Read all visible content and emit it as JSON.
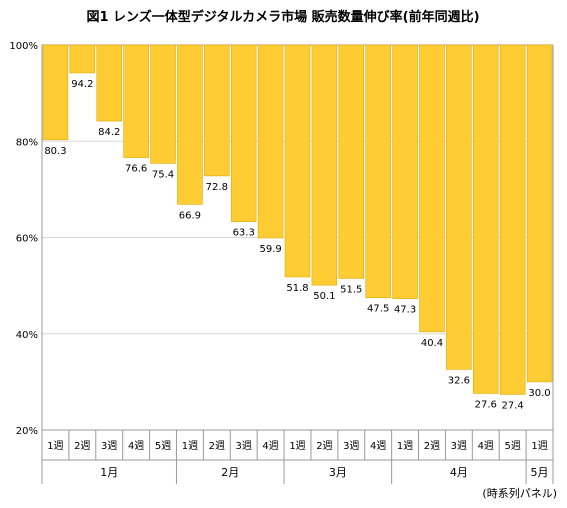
{
  "chart_data": {
    "type": "bar",
    "title": "図1 レンズ一体型デジタルカメラ市場 販売数量伸び率(前年同週比)",
    "ylim": [
      20,
      100
    ],
    "y_ticks": [
      "20%",
      "40%",
      "60%",
      "80%",
      "100%"
    ],
    "categories": [
      "1週",
      "2週",
      "3週",
      "4週",
      "5週",
      "1週",
      "2週",
      "3週",
      "4週",
      "1週",
      "2週",
      "3週",
      "4週",
      "1週",
      "2週",
      "3週",
      "4週",
      "5週",
      "1週"
    ],
    "month_groups": [
      {
        "label": "1月",
        "count": 5
      },
      {
        "label": "2月",
        "count": 4
      },
      {
        "label": "3月",
        "count": 4
      },
      {
        "label": "4月",
        "count": 5
      },
      {
        "label": "5月",
        "count": 1
      }
    ],
    "values": [
      80.3,
      94.2,
      84.2,
      76.6,
      75.4,
      66.9,
      72.8,
      63.3,
      59.9,
      51.8,
      50.1,
      51.5,
      47.5,
      47.3,
      40.4,
      32.6,
      27.6,
      27.4,
      30.0
    ],
    "value_labels": [
      "80.3",
      "94.2",
      "84.2",
      "76.6",
      "75.4",
      "66.9",
      "72.8",
      "63.3",
      "59.9",
      "51.8",
      "50.1",
      "51.5",
      "47.5",
      "47.3",
      "40.4",
      "32.6",
      "27.6",
      "27.4",
      "30.0"
    ],
    "bar_color": "#FFCC33",
    "bar_edge_color": "#E0A800",
    "grid": true,
    "footnote": "(時系列パネル)"
  }
}
